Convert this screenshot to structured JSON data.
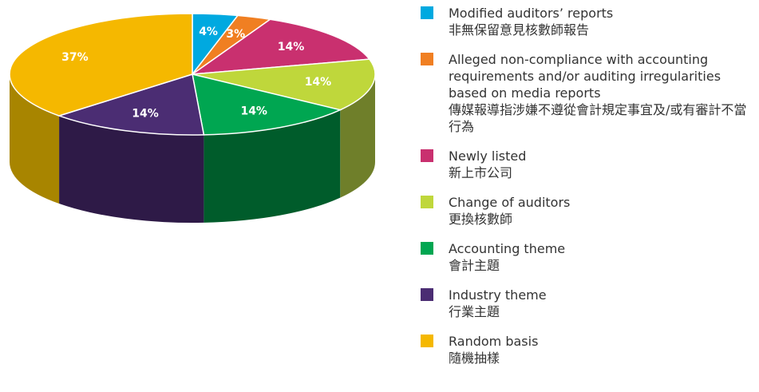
{
  "chart_data": {
    "type": "pie",
    "style": "3d",
    "categories": [
      "Modified auditors’ reports",
      "Alleged non-compliance with accounting requirements and/or auditing irregularities based on media reports",
      "Newly listed",
      "Change of auditors",
      "Accounting theme",
      "Industry theme",
      "Random basis"
    ],
    "categories_zh": [
      "非無保留意見核數師報告",
      "傳媒報導指涉嫌不遵從會計規定事宜及/或有審計不當行為",
      "新上市公司",
      "更換核數師",
      "會計主題",
      "行業主題",
      "隨機抽樣"
    ],
    "values": [
      4,
      3,
      14,
      14,
      14,
      14,
      37
    ],
    "value_labels": [
      "4%",
      "3%",
      "14%",
      "14%",
      "14%",
      "14%",
      "37%"
    ],
    "colors": [
      "#00a9e0",
      "#f07f22",
      "#c9306f",
      "#bfd73b",
      "#00a651",
      "#4b2d73",
      "#f5b800"
    ],
    "side_colors": [
      "#00769c",
      "#a85818",
      "#8c2150",
      "#6f7f2a",
      "#005c2b",
      "#2e1a47",
      "#a88500"
    ]
  }
}
